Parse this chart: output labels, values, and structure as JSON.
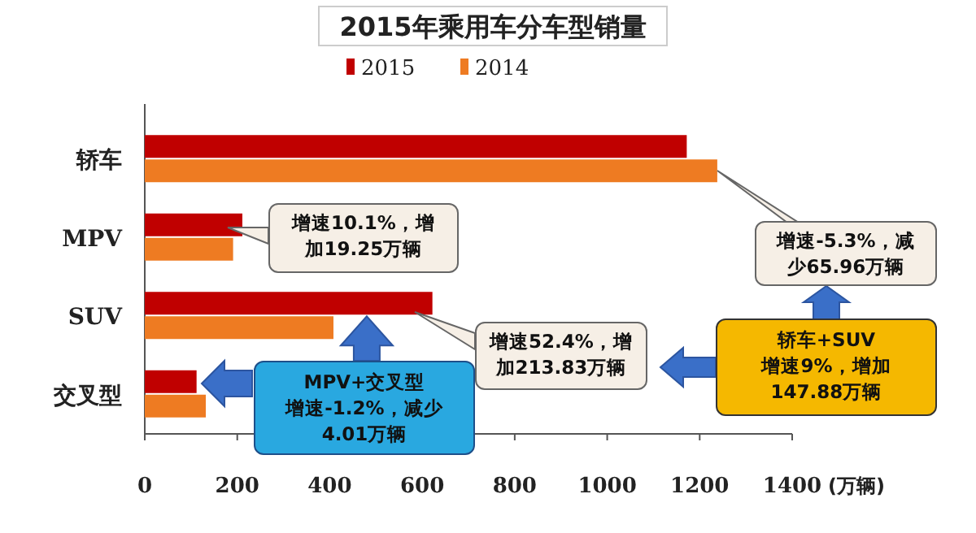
{
  "chart_data": {
    "type": "bar",
    "orientation": "horizontal",
    "title": "2015年乘用车分车型销量",
    "categories": [
      "轿车",
      "MPV",
      "SUV",
      "交叉型"
    ],
    "series": [
      {
        "name": "2015",
        "color": "#c00000",
        "values": [
          1172,
          211,
          622,
          112
        ]
      },
      {
        "name": "2014",
        "color": "#ee7b22",
        "values": [
          1238,
          191,
          408,
          132
        ]
      }
    ],
    "xlim": [
      0,
      1400
    ],
    "xticks": [
      0,
      200,
      400,
      600,
      800,
      1000,
      1200,
      1400
    ],
    "xlabel": "(万辆)",
    "legend": "top",
    "grid": false,
    "annotations": [
      "增速10.1%，增加19.25万辆",
      "增速-5.3%，减少65.96万辆",
      "增速52.4%，增加213.83万辆",
      {
        "text": "MPV+交叉型",
        "x": 480,
        "y": "SUV"
      },
      "增速-1.2%，减少4.01万辆",
      "轿车+SUV",
      "增速9%，增加147.88万辆"
    ]
  }
}
